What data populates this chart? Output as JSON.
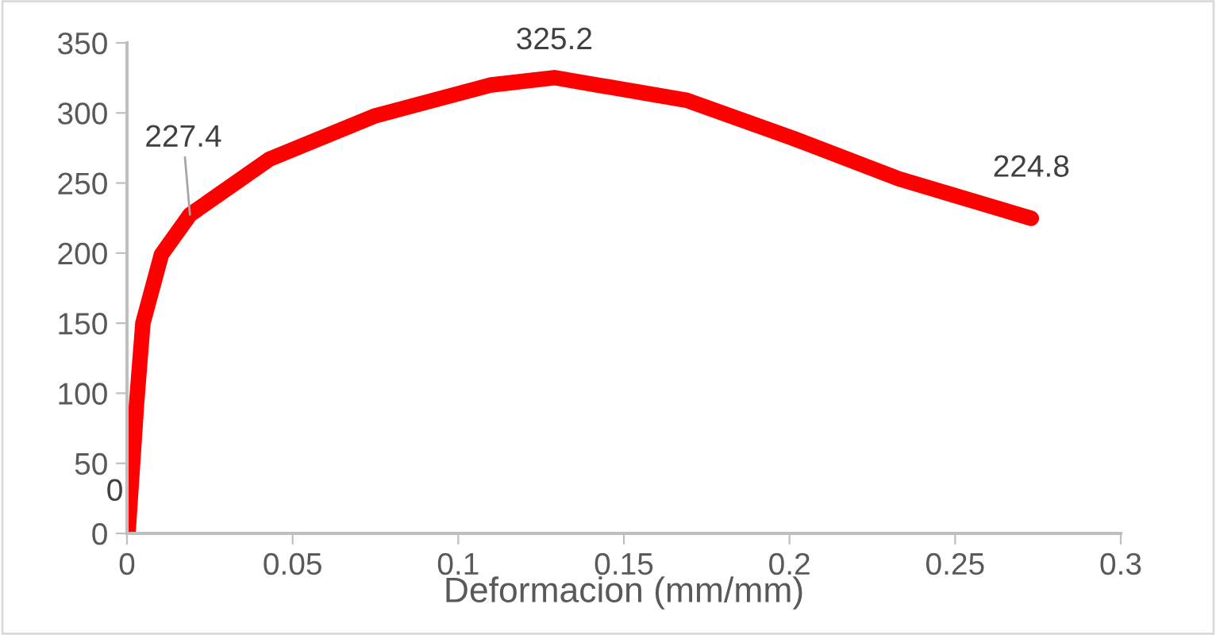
{
  "chart_data": {
    "type": "line",
    "xlabel": "Deformacion (mm/mm)",
    "series": [
      {
        "color": "#ff0000",
        "x": [
          0.0003,
          0.0029,
          0.0048,
          0.0104,
          0.019,
          0.043,
          0.075,
          0.11,
          0.129,
          0.169,
          0.201,
          0.233,
          0.273
        ],
        "values": [
          0,
          93,
          150,
          199,
          227.4,
          267,
          298,
          320,
          325.2,
          309,
          282,
          253,
          224.8
        ]
      }
    ],
    "xlim": [
      0,
      0.3
    ],
    "xticks": [
      0,
      0.05,
      0.1,
      0.15,
      0.2,
      0.25,
      0.3
    ],
    "ylim": [
      0,
      350
    ],
    "yticks": [
      0,
      50,
      100,
      150,
      200,
      250,
      300,
      350
    ],
    "annotations": [
      {
        "text": "0",
        "x": 0.0003,
        "y": 0
      },
      {
        "text": "227.4",
        "x": 0.019,
        "y": 227.4
      },
      {
        "text": "325.2",
        "x": 0.129,
        "y": 325.2
      },
      {
        "text": "224.8",
        "x": 0.273,
        "y": 224.8
      }
    ],
    "grid": false,
    "legend": false,
    "marker": "none",
    "line_style": "solid"
  }
}
